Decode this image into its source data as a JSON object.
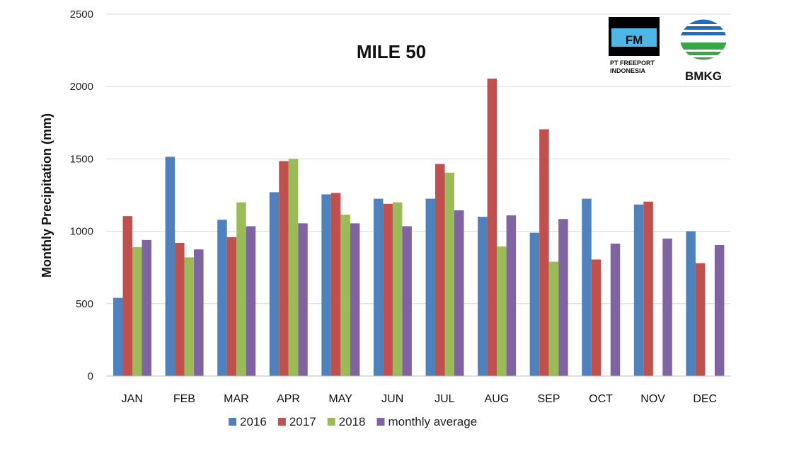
{
  "chart_data": {
    "type": "bar",
    "title": "MILE 50",
    "xlabel": "",
    "ylabel": "Monthly Precipitation (mm)",
    "ylim": [
      0,
      2500
    ],
    "yticks": [
      0,
      500,
      1000,
      1500,
      2000,
      2500
    ],
    "grid": true,
    "legend_position": "bottom",
    "categories": [
      "JAN",
      "FEB",
      "MAR",
      "APR",
      "MAY",
      "JUN",
      "JUL",
      "AUG",
      "SEP",
      "OCT",
      "NOV",
      "DEC"
    ],
    "series": [
      {
        "name": "2016",
        "color": "#4f81bd",
        "values": [
          540,
          1515,
          1080,
          1270,
          1255,
          1225,
          1225,
          1100,
          990,
          1225,
          1185,
          1000
        ]
      },
      {
        "name": "2017",
        "color": "#c0504d",
        "values": [
          1105,
          920,
          960,
          1485,
          1265,
          1190,
          1465,
          2055,
          1705,
          805,
          1205,
          780
        ]
      },
      {
        "name": "2018",
        "color": "#9bbb59",
        "values": [
          890,
          820,
          1200,
          1500,
          1115,
          1200,
          1405,
          895,
          790,
          null,
          null,
          null
        ]
      },
      {
        "name": "monthly average",
        "color": "#8064a2",
        "values": [
          940,
          875,
          1035,
          1055,
          1055,
          1035,
          1145,
          1110,
          1085,
          915,
          950,
          905
        ]
      }
    ]
  },
  "logos": {
    "freeport": {
      "mark": "FM",
      "line1": "PT FREEPORT",
      "line2": "INDONESIA",
      "mark_color": "#4fb7e8"
    },
    "bmkg": {
      "text": "BMKG"
    }
  }
}
